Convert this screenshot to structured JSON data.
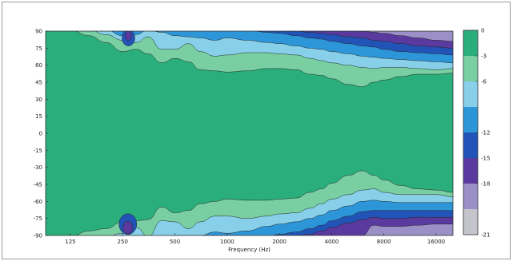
{
  "chart_data": {
    "type": "heatmap",
    "subtype": "filled-contour",
    "title": "",
    "xlabel": "Frequency (Hz)",
    "ylabel": "",
    "x_scale": "log",
    "xlim": [
      90,
      20000
    ],
    "ylim": [
      -90,
      90
    ],
    "x_ticks": [
      {
        "value": 125,
        "label": "125"
      },
      {
        "value": 250,
        "label": "250"
      },
      {
        "value": 500,
        "label": "500"
      },
      {
        "value": 1000,
        "label": "1000"
      },
      {
        "value": 2000,
        "label": "2000"
      },
      {
        "value": 4000,
        "label": "4000"
      },
      {
        "value": 8000,
        "label": "8000"
      },
      {
        "value": 16000,
        "label": "16000"
      }
    ],
    "y_ticks": [
      90,
      75,
      60,
      45,
      30,
      15,
      0,
      -15,
      -30,
      -45,
      -60,
      -75,
      -90
    ],
    "colorbar": {
      "ticks": [
        0,
        -3,
        -6,
        -12,
        -15,
        -18,
        -21
      ],
      "bands": [
        {
          "from": 0,
          "to": -3,
          "color": "#2aae7c"
        },
        {
          "from": -3,
          "to": -6,
          "color": "#79cfa2"
        },
        {
          "from": -6,
          "to": -9,
          "color": "#88d0ea"
        },
        {
          "from": -9,
          "to": -12,
          "color": "#2d96d8"
        },
        {
          "from": -12,
          "to": -15,
          "color": "#2254b8"
        },
        {
          "from": -15,
          "to": -18,
          "color": "#5b3aa0"
        },
        {
          "from": -18,
          "to": -21,
          "color": "#9a8fc6"
        },
        {
          "from": -21,
          "to": -24,
          "color": "#c4c4cc"
        }
      ]
    },
    "contour_boundaries_deg": {
      "x": [
        90,
        125,
        160,
        200,
        250,
        300,
        350,
        420,
        500,
        600,
        700,
        850,
        1000,
        1300,
        1700,
        2000,
        2500,
        3000,
        3500,
        4000,
        5000,
        6000,
        7000,
        8000,
        10000,
        12500,
        16000,
        20000
      ],
      "levels": [
        {
          "level": -3,
          "angles": [
            91,
            91,
            86,
            80,
            72,
            74,
            70,
            62,
            66,
            63,
            56,
            55,
            54,
            55,
            57,
            57,
            56,
            52,
            51,
            48,
            43,
            41,
            45,
            47,
            50,
            52,
            52,
            53
          ]
        },
        {
          "level": -6,
          "angles": [
            91,
            91,
            91,
            87,
            82,
            80,
            85,
            74,
            74,
            79,
            72,
            68,
            69,
            71,
            71,
            70,
            69,
            66,
            64,
            62,
            60,
            58,
            57,
            58,
            58,
            57,
            56,
            57
          ]
        },
        {
          "level": -9,
          "angles": [
            91,
            91,
            91,
            91,
            86,
            87,
            91,
            89,
            86,
            85,
            84,
            82,
            84,
            82,
            80,
            79,
            77,
            75,
            74,
            72,
            70,
            68,
            67,
            66,
            65,
            64,
            63,
            62
          ]
        },
        {
          "level": -12,
          "angles": [
            91,
            91,
            91,
            91,
            90,
            91,
            91,
            91,
            91,
            91,
            91,
            91,
            91,
            91,
            89,
            88,
            86,
            84,
            83,
            81,
            79,
            77,
            76,
            74,
            72,
            71,
            70,
            69
          ]
        },
        {
          "level": -15,
          "angles": [
            91,
            91,
            91,
            91,
            91,
            91,
            91,
            91,
            91,
            91,
            91,
            91,
            91,
            91,
            91,
            91,
            90,
            89,
            88,
            87,
            85,
            84,
            82,
            81,
            79,
            77,
            76,
            75
          ]
        },
        {
          "level": -18,
          "angles": [
            91,
            91,
            91,
            91,
            91,
            91,
            91,
            91,
            91,
            91,
            91,
            91,
            91,
            91,
            91,
            91,
            91,
            91,
            91,
            91,
            91,
            90,
            89,
            88,
            86,
            84,
            82,
            81
          ]
        }
      ]
    },
    "bottom_lowering_deg": {
      "x": [
        90,
        125,
        160,
        200,
        250,
        300,
        350,
        420,
        500,
        600,
        700,
        850,
        1000,
        1300,
        1700,
        2000,
        2500,
        3000,
        3500,
        4000,
        5000,
        6000,
        7000,
        8000,
        10000,
        12500,
        16000,
        20000
      ],
      "delta": [
        0,
        0,
        0,
        4,
        6,
        3,
        6,
        3,
        4,
        5,
        6,
        5,
        4,
        4,
        2,
        1,
        1,
        0,
        -2,
        -4,
        -6,
        -8,
        -8,
        -6,
        -4,
        -3,
        -2,
        -1
      ]
    }
  }
}
